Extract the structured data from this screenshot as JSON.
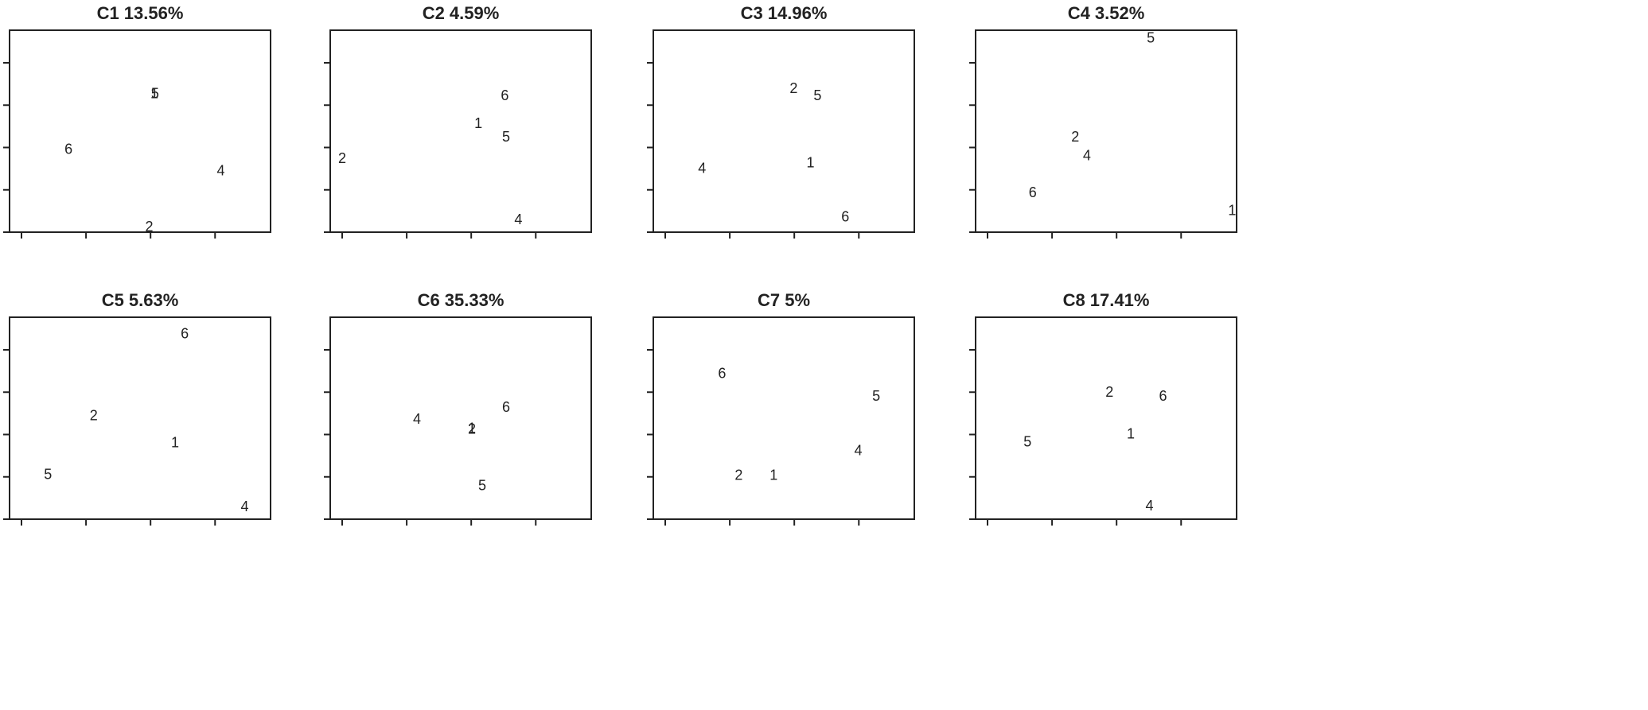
{
  "chart_data": [
    {
      "type": "scatter",
      "title": "C1 13.56%",
      "labels": [
        "1",
        "2",
        "4",
        "5",
        "6"
      ],
      "x": [
        2.06,
        1.98,
        3.09,
        2.07,
        0.73
      ],
      "y": [
        3.25,
        0.11,
        1.43,
        3.25,
        1.94
      ],
      "xlim": [
        -0.185,
        3.86
      ],
      "ylim": [
        0,
        4.77
      ],
      "xticks": [
        0,
        1,
        2,
        3
      ],
      "yticks": [
        0,
        1,
        2,
        3,
        4
      ]
    },
    {
      "type": "scatter",
      "title": "C2 4.59%",
      "labels": [
        "1",
        "2",
        "4",
        "5",
        "6"
      ],
      "x": [
        2.11,
        0.0,
        2.73,
        2.54,
        2.52
      ],
      "y": [
        2.55,
        1.72,
        0.28,
        2.23,
        3.21
      ],
      "xlim": [
        -0.185,
        3.86
      ],
      "ylim": [
        0,
        4.77
      ],
      "xticks": [
        0,
        1,
        2,
        3
      ],
      "yticks": [
        0,
        1,
        2,
        3,
        4
      ]
    },
    {
      "type": "scatter",
      "title": "C3 14.96%",
      "labels": [
        "1",
        "2",
        "4",
        "5",
        "6"
      ],
      "x": [
        2.25,
        1.99,
        0.57,
        2.36,
        2.79
      ],
      "y": [
        1.62,
        3.38,
        1.49,
        3.21,
        0.34
      ],
      "xlim": [
        -0.185,
        3.86
      ],
      "ylim": [
        0,
        4.77
      ],
      "xticks": [
        0,
        1,
        2,
        3
      ],
      "yticks": [
        0,
        1,
        2,
        3,
        4
      ]
    },
    {
      "type": "scatter",
      "title": "C4 3.52%",
      "labels": [
        "1",
        "2",
        "4",
        "5",
        "6"
      ],
      "x": [
        3.79,
        1.36,
        1.54,
        2.53,
        0.7
      ],
      "y": [
        0.49,
        2.23,
        1.79,
        4.57,
        0.92
      ],
      "xlim": [
        -0.185,
        3.86
      ],
      "ylim": [
        0,
        4.77
      ],
      "xticks": [
        0,
        1,
        2,
        3
      ],
      "yticks": [
        0,
        1,
        2,
        3,
        4
      ]
    },
    {
      "type": "scatter",
      "title": "C5 5.63%",
      "labels": [
        "1",
        "2",
        "4",
        "5",
        "6"
      ],
      "x": [
        2.38,
        1.12,
        3.46,
        0.41,
        2.53
      ],
      "y": [
        1.79,
        2.43,
        0.28,
        1.04,
        4.36
      ],
      "xlim": [
        -0.185,
        3.86
      ],
      "ylim": [
        0,
        4.77
      ],
      "xticks": [
        0,
        1,
        2,
        3
      ],
      "yticks": [
        0,
        1,
        2,
        3,
        4
      ]
    },
    {
      "type": "scatter",
      "title": "C6 35.33%",
      "labels": [
        "1",
        "2",
        "4",
        "5",
        "6"
      ],
      "x": [
        2.01,
        2.01,
        1.16,
        2.17,
        2.54
      ],
      "y": [
        2.13,
        2.11,
        2.34,
        0.77,
        2.62
      ],
      "xlim": [
        -0.185,
        3.86
      ],
      "ylim": [
        0,
        4.77
      ],
      "xticks": [
        0,
        1,
        2,
        3
      ],
      "yticks": [
        0,
        1,
        2,
        3,
        4
      ]
    },
    {
      "type": "scatter",
      "title": "C7 5%",
      "labels": [
        "1",
        "2",
        "4",
        "5",
        "6"
      ],
      "x": [
        1.68,
        1.14,
        2.99,
        3.27,
        0.88
      ],
      "y": [
        1.02,
        1.02,
        1.6,
        2.89,
        3.42
      ],
      "xlim": [
        -0.185,
        3.86
      ],
      "ylim": [
        0,
        4.77
      ],
      "xticks": [
        0,
        1,
        2,
        3
      ],
      "yticks": [
        0,
        1,
        2,
        3,
        4
      ]
    },
    {
      "type": "scatter",
      "title": "C8 17.41%",
      "labels": [
        "1",
        "2",
        "4",
        "5",
        "6"
      ],
      "x": [
        2.22,
        1.89,
        2.51,
        0.62,
        2.72
      ],
      "y": [
        2.0,
        2.98,
        0.3,
        1.81,
        2.89
      ],
      "xlim": [
        -0.185,
        3.86
      ],
      "ylim": [
        0,
        4.77
      ],
      "xticks": [
        0,
        1,
        2,
        3
      ],
      "yticks": [
        0,
        1,
        2,
        3,
        4
      ]
    }
  ]
}
